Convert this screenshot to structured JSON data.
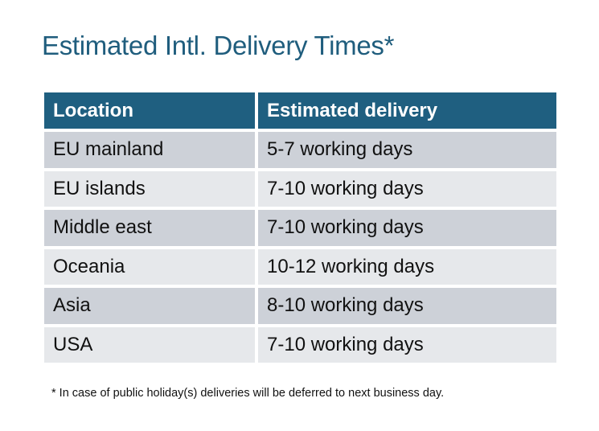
{
  "title": "Estimated Intl. Delivery Times*",
  "table": {
    "headers": [
      "Location",
      "Estimated delivery"
    ],
    "rows": [
      [
        "EU mainland",
        "5-7 working days"
      ],
      [
        "EU islands",
        "7-10 working days"
      ],
      [
        "Middle east",
        "7-10 working days"
      ],
      [
        "Oceania",
        "10-12 working days"
      ],
      [
        "Asia",
        "8-10 working days"
      ],
      [
        "USA",
        "7-10 working days"
      ]
    ]
  },
  "footnote": "* In case of public holiday(s) deliveries will be deferred to next business day.",
  "colors": {
    "header": "#1f5f80",
    "title": "#1f5d7d",
    "row_odd": "#cdd1d8",
    "row_even": "#e6e8eb"
  }
}
